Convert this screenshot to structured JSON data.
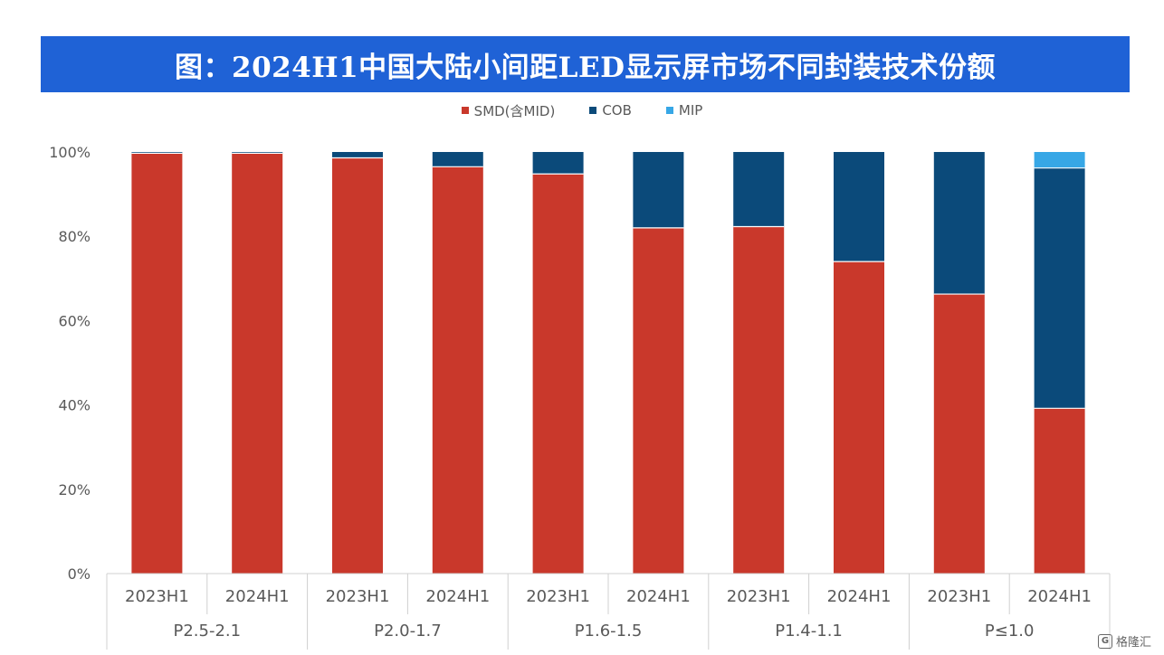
{
  "title": "图：2024H1中国大陆小间距LED显示屏市场不同封装技术份额",
  "legend": [
    {
      "name": "SMD(含MID)",
      "color": "#c9382b"
    },
    {
      "name": "COB",
      "color": "#0b4a7a"
    },
    {
      "name": "MIP",
      "color": "#37a7e6"
    }
  ],
  "watermark": {
    "logo": "G",
    "text": "格隆汇"
  },
  "chart_data": {
    "type": "bar",
    "stacked": true,
    "y_ticks": [
      "0%",
      "20%",
      "40%",
      "60%",
      "80%",
      "100%"
    ],
    "ylim": [
      0,
      100
    ],
    "categories": [
      "2023H1",
      "2024H1",
      "2023H1",
      "2024H1",
      "2023H1",
      "2024H1",
      "2023H1",
      "2024H1",
      "2023H1",
      "2024H1"
    ],
    "groups": [
      "P2.5-2.1",
      "P2.0-1.7",
      "P1.6-1.5",
      "P1.4-1.1",
      "P≤1.0"
    ],
    "series": [
      {
        "name": "SMD(含MID)",
        "color": "#c9382b",
        "values": [
          99.7,
          99.7,
          98.6,
          96.5,
          94.8,
          82,
          82.3,
          74,
          66.3,
          39.2
        ]
      },
      {
        "name": "COB",
        "color": "#0b4a7a",
        "values": [
          0.3,
          0.3,
          1.4,
          3.5,
          5.2,
          18,
          17.7,
          26,
          33.7,
          57
        ]
      },
      {
        "name": "MIP",
        "color": "#37a7e6",
        "values": [
          0,
          0,
          0,
          0,
          0,
          0,
          0,
          0,
          0,
          3.8
        ]
      }
    ],
    "grid": false,
    "legend_position": "top-center"
  }
}
